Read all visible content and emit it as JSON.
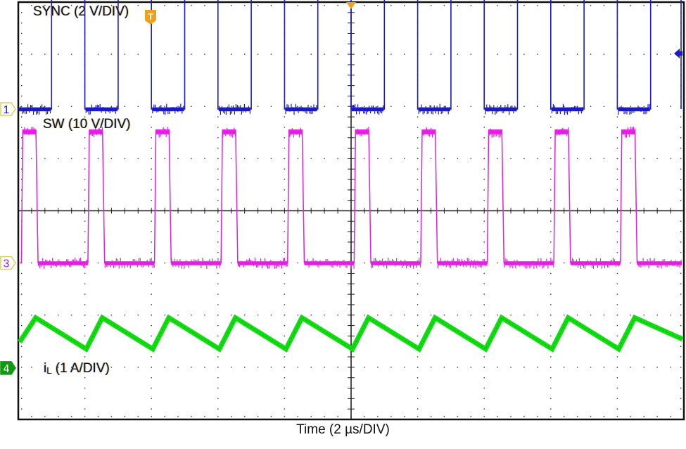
{
  "chart_data": {
    "type": "line",
    "title": "",
    "xlabel": "Time (2 µs/DIV)",
    "grid": {
      "x_divisions": 10,
      "y_divisions": 8,
      "style": "dotted",
      "center_crosshair": true
    },
    "time_per_div_us": 2,
    "period_us": 2.0,
    "frequency_khz": 500,
    "cycles_shown": 10,
    "series": [
      {
        "name": "SYNC",
        "channel": 1,
        "scale": "2 V/DIV",
        "label": "SYNC (2 V/DIV)",
        "color": "#1a1acc",
        "waveform": "square",
        "duty_cycle": 0.5,
        "low_div": 1.95,
        "high_div": 7.65,
        "first_rise_us": 1.0
      },
      {
        "name": "SW",
        "channel": 3,
        "scale": "10 V/DIV",
        "label": "SW (10 V/DIV)",
        "color": "#e020e0",
        "waveform": "pulse",
        "duty_cycle": 0.24,
        "low_div": -1.0,
        "high_div": 1.55,
        "first_rise_us": 0.05
      },
      {
        "name": "iL",
        "channel": 4,
        "scale": "1 A/DIV",
        "label_main": "i",
        "label_sub": "L",
        "label_rest": " (1 A/DIV)",
        "color": "#10dd10",
        "waveform": "triangle",
        "rise_fraction": 0.24,
        "min_div": -2.65,
        "max_div": -2.05,
        "first_valley_us": 0.0
      }
    ],
    "markers": {
      "ch1_marker": {
        "text": "1",
        "color": "#1a1acc",
        "y_div": 1.95
      },
      "ch3_marker": {
        "text": "3",
        "color": "#b020b0",
        "y_div": -1.0
      },
      "ch4_marker": {
        "text": "4",
        "color": "#119911",
        "y_div": -3.0
      },
      "trigger_marker": {
        "text": "T",
        "color": "#f0a020"
      },
      "trigger_position_marker": {
        "color": "#f0a020"
      },
      "trigger_level_arrow": {
        "color": "#1a1acc"
      }
    }
  },
  "labels": {
    "sync": "SYNC (2 V/DIV)",
    "sw": "SW (10 V/DIV)",
    "il_main": "i",
    "il_sub": "L",
    "il_rest": " (1 A/DIV)",
    "xaxis": "Time (2 µs/DIV)",
    "ch1": "1",
    "ch3": "3",
    "ch4": "4",
    "trig": "T"
  }
}
